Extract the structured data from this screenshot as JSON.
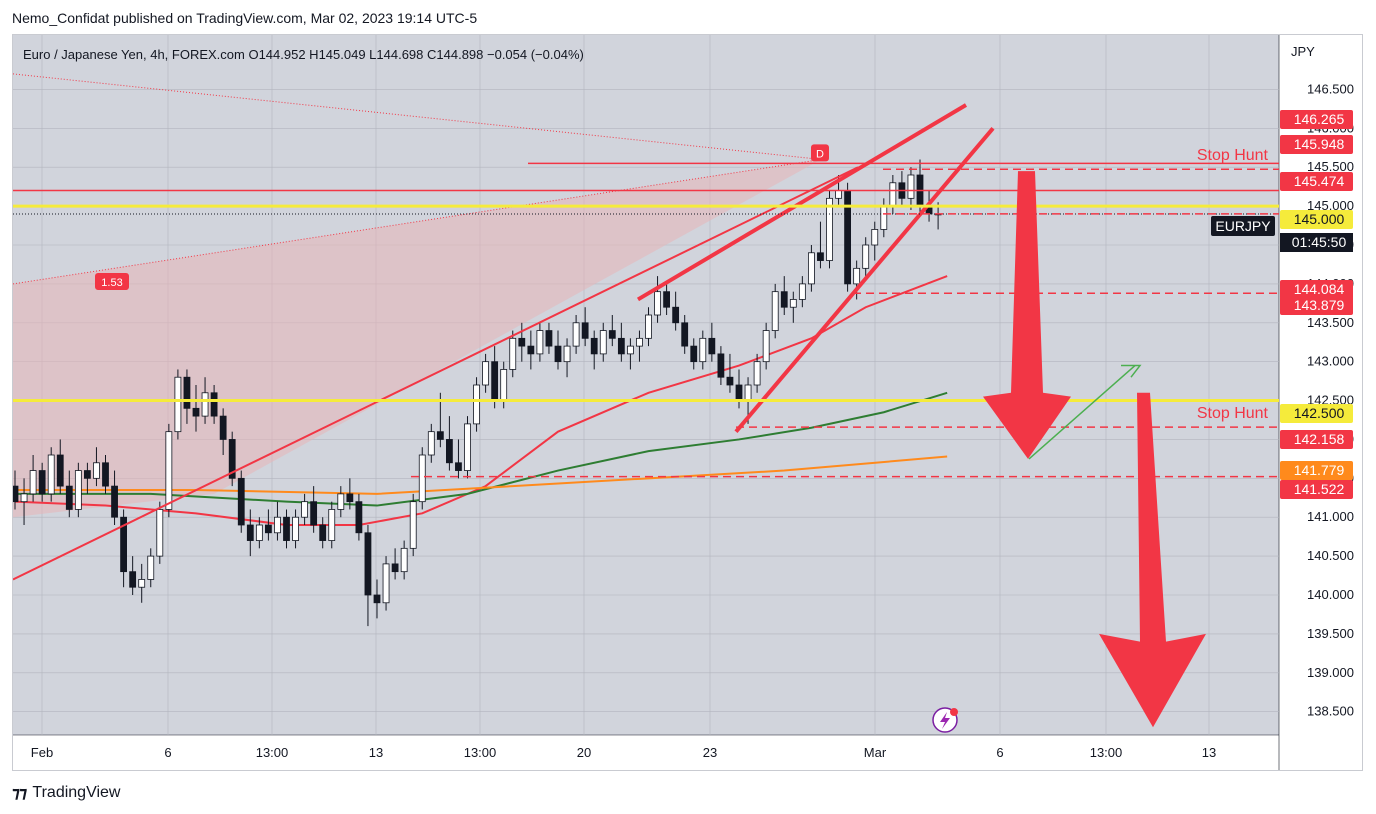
{
  "publisher_line": "Nemo_Confidat published on TradingView.com, Mar 02, 2023 19:14 UTC-5",
  "footer_brand": "TradingView",
  "colors": {
    "chart_bg": "#d1d4dc",
    "grid": "#b2b5be",
    "red_line": "#f23645",
    "yellow_line": "#f5eb3b",
    "ma_red": "#f23645",
    "ma_green": "#2e7d32",
    "ma_orange": "#ff8a1c",
    "pink_zone": "#e8b4b8",
    "candle_up": "#ffffff",
    "candle_down": "#131722",
    "up_arrow": "#4caf50"
  },
  "chart_data": {
    "type": "candlestick",
    "title": "Euro / Japanese Yen, 4h, FOREX.com",
    "ohlc_header": {
      "o": "O144.952",
      "h": "H145.049",
      "l": "L144.698",
      "c": "C144.898",
      "change": "−0.054 (−0.04%)"
    },
    "currency": "JPY",
    "symbol_tag": "EURJPY",
    "countdown": "01:45:50",
    "ylim": [
      138.2,
      147.2
    ],
    "y_ticks": [
      "146.500",
      "146.000",
      "145.500",
      "145.000",
      "144.500",
      "144.000",
      "143.500",
      "143.000",
      "142.500",
      "142.000",
      "141.500",
      "141.000",
      "140.500",
      "140.000",
      "139.500",
      "139.000",
      "138.500"
    ],
    "x_ticks": [
      "Feb",
      "6",
      "13:00",
      "13",
      "13:00",
      "20",
      "23",
      "Mar",
      "6",
      "13:00",
      "13"
    ],
    "price_labels": [
      {
        "text": "146.265",
        "value": 146.265,
        "color": "#f23645"
      },
      {
        "text": "145.948",
        "value": 145.948,
        "color": "#f23645"
      },
      {
        "text": "145.474",
        "value": 145.474,
        "color": "#f23645"
      },
      {
        "text": "145.000",
        "value": 145.0,
        "color": "#f5eb3b"
      },
      {
        "text": "144.084",
        "value": 144.084,
        "color": "#f23645"
      },
      {
        "text": "143.879",
        "value": 143.879,
        "color": "#f23645"
      },
      {
        "text": "142.500",
        "value": 142.5,
        "color": "#f5eb3b"
      },
      {
        "text": "142.158",
        "value": 142.158,
        "color": "#f23645"
      },
      {
        "text": "141.779",
        "value": 141.779,
        "color": "#ff8a1c"
      },
      {
        "text": "141.522",
        "value": 141.522,
        "color": "#f23645"
      }
    ],
    "last_price": 144.898,
    "annotations": {
      "stop_hunt_label": "Stop Hunt",
      "stop_hunt_levels": [
        145.474,
        142.158
      ],
      "d_marker": "D",
      "ratio_label": "1.53",
      "yellow_levels": [
        145.0,
        142.5
      ],
      "red_level": 145.049
    },
    "candles": [
      [
        141.4,
        141.6,
        141.1,
        141.2
      ],
      [
        141.2,
        141.5,
        140.9,
        141.3
      ],
      [
        141.3,
        141.8,
        141.2,
        141.6
      ],
      [
        141.6,
        141.7,
        141.2,
        141.3
      ],
      [
        141.3,
        141.9,
        141.2,
        141.8
      ],
      [
        141.8,
        142.0,
        141.3,
        141.4
      ],
      [
        141.4,
        141.6,
        141.0,
        141.1
      ],
      [
        141.1,
        141.7,
        141.0,
        141.6
      ],
      [
        141.6,
        141.7,
        141.3,
        141.5
      ],
      [
        141.5,
        141.9,
        141.4,
        141.7
      ],
      [
        141.7,
        141.8,
        141.3,
        141.4
      ],
      [
        141.4,
        141.6,
        140.9,
        141.0
      ],
      [
        141.0,
        141.1,
        140.1,
        140.3
      ],
      [
        140.3,
        140.5,
        140.0,
        140.1
      ],
      [
        140.1,
        140.4,
        139.9,
        140.2
      ],
      [
        140.2,
        140.6,
        140.1,
        140.5
      ],
      [
        140.5,
        141.2,
        140.4,
        141.1
      ],
      [
        141.1,
        142.2,
        141.0,
        142.1
      ],
      [
        142.1,
        142.9,
        142.0,
        142.8
      ],
      [
        142.8,
        142.9,
        142.2,
        142.4
      ],
      [
        142.4,
        142.7,
        142.1,
        142.3
      ],
      [
        142.3,
        142.8,
        142.2,
        142.6
      ],
      [
        142.6,
        142.7,
        142.2,
        142.3
      ],
      [
        142.3,
        142.4,
        141.8,
        142.0
      ],
      [
        142.0,
        142.1,
        141.4,
        141.5
      ],
      [
        141.5,
        141.6,
        140.8,
        140.9
      ],
      [
        140.9,
        141.1,
        140.5,
        140.7
      ],
      [
        140.7,
        141.0,
        140.6,
        140.9
      ],
      [
        140.9,
        141.1,
        140.7,
        140.8
      ],
      [
        140.8,
        141.2,
        140.7,
        141.0
      ],
      [
        141.0,
        141.1,
        140.6,
        140.7
      ],
      [
        140.7,
        141.1,
        140.6,
        141.0
      ],
      [
        141.0,
        141.3,
        140.9,
        141.2
      ],
      [
        141.2,
        141.4,
        140.8,
        140.9
      ],
      [
        140.9,
        141.0,
        140.6,
        140.7
      ],
      [
        140.7,
        141.2,
        140.6,
        141.1
      ],
      [
        141.1,
        141.4,
        141.0,
        141.3
      ],
      [
        141.3,
        141.5,
        141.1,
        141.2
      ],
      [
        141.2,
        141.3,
        140.7,
        140.8
      ],
      [
        140.8,
        140.9,
        139.6,
        140.0
      ],
      [
        140.0,
        140.2,
        139.7,
        139.9
      ],
      [
        139.9,
        140.5,
        139.8,
        140.4
      ],
      [
        140.4,
        140.6,
        140.2,
        140.3
      ],
      [
        140.3,
        140.7,
        140.2,
        140.6
      ],
      [
        140.6,
        141.3,
        140.5,
        141.2
      ],
      [
        141.2,
        141.9,
        141.1,
        141.8
      ],
      [
        141.8,
        142.2,
        141.7,
        142.1
      ],
      [
        142.1,
        142.6,
        141.9,
        142.0
      ],
      [
        142.0,
        142.3,
        141.6,
        141.7
      ],
      [
        141.7,
        142.0,
        141.5,
        141.6
      ],
      [
        141.6,
        142.3,
        141.5,
        142.2
      ],
      [
        142.2,
        142.8,
        142.1,
        142.7
      ],
      [
        142.7,
        143.1,
        142.6,
        143.0
      ],
      [
        143.0,
        143.2,
        142.4,
        142.5
      ],
      [
        142.5,
        143.0,
        142.4,
        142.9
      ],
      [
        142.9,
        143.4,
        142.8,
        143.3
      ],
      [
        143.3,
        143.5,
        143.0,
        143.2
      ],
      [
        143.2,
        143.4,
        142.9,
        143.1
      ],
      [
        143.1,
        143.5,
        143.0,
        143.4
      ],
      [
        143.4,
        143.5,
        143.1,
        143.2
      ],
      [
        143.2,
        143.4,
        142.9,
        143.0
      ],
      [
        143.0,
        143.3,
        142.8,
        143.2
      ],
      [
        143.2,
        143.6,
        143.1,
        143.5
      ],
      [
        143.5,
        143.7,
        143.2,
        143.3
      ],
      [
        143.3,
        143.4,
        142.9,
        143.1
      ],
      [
        143.1,
        143.5,
        143.0,
        143.4
      ],
      [
        143.4,
        143.6,
        143.2,
        143.3
      ],
      [
        143.3,
        143.5,
        143.0,
        143.1
      ],
      [
        143.1,
        143.3,
        142.9,
        143.2
      ],
      [
        143.2,
        143.4,
        143.0,
        143.3
      ],
      [
        143.3,
        143.7,
        143.2,
        143.6
      ],
      [
        143.6,
        144.1,
        143.5,
        143.9
      ],
      [
        143.9,
        144.0,
        143.6,
        143.7
      ],
      [
        143.7,
        143.9,
        143.4,
        143.5
      ],
      [
        143.5,
        143.6,
        143.1,
        143.2
      ],
      [
        143.2,
        143.3,
        142.9,
        143.0
      ],
      [
        143.0,
        143.4,
        142.9,
        143.3
      ],
      [
        143.3,
        143.5,
        143.0,
        143.1
      ],
      [
        143.1,
        143.2,
        142.7,
        142.8
      ],
      [
        142.8,
        143.1,
        142.6,
        142.7
      ],
      [
        142.7,
        142.9,
        142.4,
        142.5
      ],
      [
        142.5,
        142.8,
        142.2,
        142.7
      ],
      [
        142.7,
        143.1,
        142.6,
        143.0
      ],
      [
        143.0,
        143.5,
        142.9,
        143.4
      ],
      [
        143.4,
        144.0,
        143.3,
        143.9
      ],
      [
        143.9,
        144.1,
        143.6,
        143.7
      ],
      [
        143.7,
        143.9,
        143.5,
        143.8
      ],
      [
        143.8,
        144.1,
        143.7,
        144.0
      ],
      [
        144.0,
        144.5,
        143.9,
        144.4
      ],
      [
        144.4,
        144.8,
        144.2,
        144.3
      ],
      [
        144.3,
        145.2,
        144.2,
        145.1
      ],
      [
        145.1,
        145.4,
        145.0,
        145.2
      ],
      [
        145.2,
        145.3,
        143.9,
        144.0
      ],
      [
        144.0,
        144.3,
        143.8,
        144.2
      ],
      [
        144.2,
        144.6,
        144.1,
        144.5
      ],
      [
        144.5,
        144.8,
        144.3,
        144.7
      ],
      [
        144.7,
        145.1,
        144.6,
        145.0
      ],
      [
        145.0,
        145.4,
        144.9,
        145.3
      ],
      [
        145.3,
        145.45,
        145.0,
        145.1
      ],
      [
        145.1,
        145.5,
        144.95,
        145.4
      ],
      [
        145.4,
        145.6,
        144.9,
        145.0
      ],
      [
        145.0,
        145.2,
        144.8,
        144.9
      ],
      [
        144.9,
        145.05,
        144.7,
        144.9
      ]
    ],
    "ma_red": [
      [
        0,
        141.2
      ],
      [
        10,
        141.15
      ],
      [
        20,
        141.05
      ],
      [
        30,
        140.9
      ],
      [
        38,
        140.9
      ],
      [
        45,
        141.05
      ],
      [
        52,
        141.4
      ],
      [
        60,
        142.1
      ],
      [
        70,
        142.6
      ],
      [
        80,
        142.95
      ],
      [
        88,
        143.3
      ],
      [
        94,
        143.7
      ],
      [
        103,
        144.1
      ]
    ],
    "ma_green": [
      [
        0,
        141.3
      ],
      [
        15,
        141.3
      ],
      [
        30,
        141.2
      ],
      [
        40,
        141.15
      ],
      [
        50,
        141.3
      ],
      [
        60,
        141.6
      ],
      [
        70,
        141.85
      ],
      [
        80,
        142.0
      ],
      [
        88,
        142.15
      ],
      [
        96,
        142.35
      ],
      [
        103,
        142.6
      ]
    ],
    "ma_orange": [
      [
        0,
        141.35
      ],
      [
        20,
        141.35
      ],
      [
        40,
        141.3
      ],
      [
        55,
        141.4
      ],
      [
        70,
        141.5
      ],
      [
        85,
        141.6
      ],
      [
        103,
        141.78
      ]
    ]
  }
}
